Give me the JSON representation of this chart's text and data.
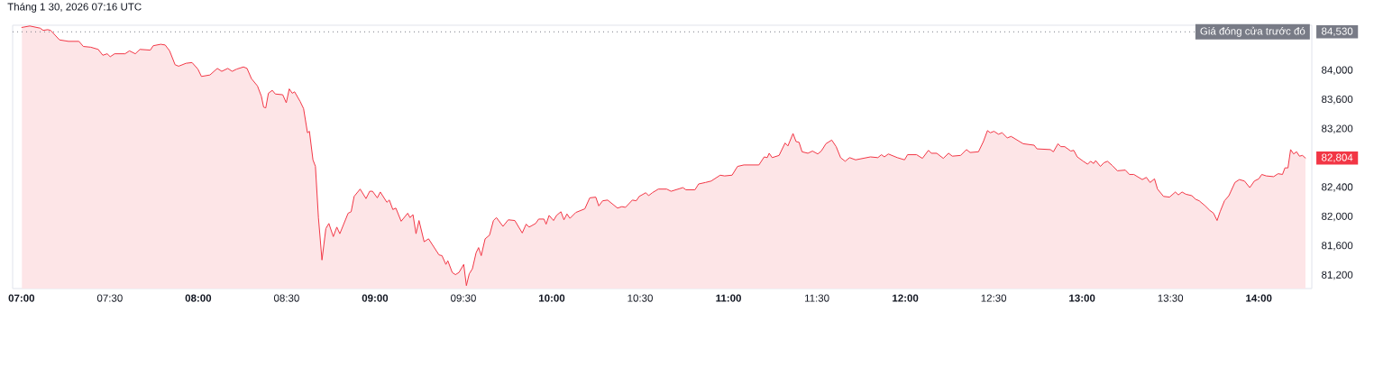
{
  "chart_data": {
    "type": "area",
    "title": "Tháng 1 30, 2026 07:16 UTC",
    "color": "#f23645",
    "x": [
      7.002,
      7.047,
      7.106,
      7.123,
      7.148,
      7.165,
      7.215,
      7.266,
      7.325,
      7.35,
      7.392,
      7.434,
      7.46,
      7.485,
      7.502,
      7.527,
      7.586,
      7.611,
      7.644,
      7.67,
      7.729,
      7.745,
      7.788,
      7.813,
      7.838,
      7.869,
      7.889,
      7.931,
      7.965,
      7.998,
      8.018,
      8.066,
      8.108,
      8.133,
      8.167,
      8.192,
      8.217,
      8.256,
      8.276,
      8.301,
      8.335,
      8.357,
      8.37,
      8.382,
      8.397,
      8.419,
      8.436,
      8.478,
      8.498,
      8.515,
      8.532,
      8.545,
      8.576,
      8.596,
      8.618,
      8.629,
      8.649,
      8.663,
      8.68,
      8.7,
      8.722,
      8.739,
      8.764,
      8.784,
      8.801,
      8.848,
      8.865,
      8.882,
      8.916,
      8.949,
      8.97,
      8.986,
      9.013,
      9.03,
      9.067,
      9.081,
      9.101,
      9.118,
      9.148,
      9.185,
      9.198,
      9.215,
      9.232,
      9.249,
      9.278,
      9.303,
      9.362,
      9.379,
      9.401,
      9.412,
      9.437,
      9.455,
      9.475,
      9.502,
      9.517,
      9.533,
      9.551,
      9.572,
      9.586,
      9.601,
      9.623,
      9.648,
      9.67,
      9.687,
      9.724,
      9.754,
      9.791,
      9.833,
      9.855,
      9.872,
      9.909,
      9.926,
      9.956,
      9.968,
      9.985,
      10.01,
      10.027,
      10.052,
      10.069,
      10.086,
      10.103,
      10.136,
      10.187,
      10.215,
      10.249,
      10.266,
      10.288,
      10.316,
      10.372,
      10.397,
      10.417,
      10.456,
      10.478,
      10.495,
      10.532,
      10.548,
      10.569,
      10.603,
      10.65,
      10.675,
      10.742,
      10.759,
      10.81,
      10.831,
      10.869,
      10.902,
      10.953,
      10.978,
      11.02,
      11.051,
      11.087,
      11.172,
      11.202,
      11.219,
      11.23,
      11.247,
      11.286,
      11.32,
      11.336,
      11.365,
      11.382,
      11.399,
      11.416,
      11.449,
      11.475,
      11.505,
      11.525,
      11.551,
      11.584,
      11.609,
      11.634,
      11.66,
      11.685,
      11.719,
      11.803,
      11.845,
      11.865,
      11.882,
      11.904,
      11.955,
      11.996,
      12.013,
      12.064,
      12.097,
      12.131,
      12.148,
      12.178,
      12.215,
      12.245,
      12.266,
      12.313,
      12.346,
      12.367,
      12.414,
      12.442,
      12.465,
      12.481,
      12.502,
      12.527,
      12.548,
      12.577,
      12.599,
      12.667,
      12.729,
      12.745,
      12.821,
      12.838,
      12.864,
      12.88,
      12.902,
      12.936,
      12.953,
      12.973,
      13.007,
      13.032,
      13.048,
      13.066,
      13.077,
      13.104,
      13.124,
      13.144,
      13.172,
      13.2,
      13.245,
      13.268,
      13.293,
      13.341,
      13.364,
      13.385,
      13.41,
      13.427,
      13.461,
      13.495,
      13.528,
      13.545,
      13.566,
      13.587,
      13.621,
      13.643,
      13.663,
      13.697,
      13.722,
      13.744,
      13.764,
      13.781,
      13.806,
      13.831,
      13.865,
      13.89,
      13.919,
      13.949,
      13.975,
      14.0,
      14.017,
      14.042,
      14.084,
      14.109,
      14.134,
      14.148,
      14.165,
      14.18,
      14.197,
      14.214,
      14.23,
      14.247,
      14.264
    ],
    "values": [
      84590,
      84610,
      84580,
      84550,
      84560,
      84550,
      84420,
      84400,
      84400,
      84330,
      84320,
      84290,
      84210,
      84230,
      84190,
      84230,
      84230,
      84270,
      84230,
      84290,
      84280,
      84340,
      84360,
      84350,
      84270,
      84080,
      84060,
      84100,
      84110,
      84020,
      83920,
      83940,
      84030,
      83990,
      84030,
      83990,
      84020,
      84050,
      84030,
      83890,
      83790,
      83650,
      83500,
      83490,
      83690,
      83730,
      83680,
      83670,
      83560,
      83750,
      83690,
      83710,
      83580,
      83480,
      83150,
      83170,
      82780,
      82690,
      81990,
      81410,
      81840,
      81910,
      81730,
      81860,
      81770,
      82050,
      82070,
      82280,
      82380,
      82250,
      82350,
      82350,
      82260,
      82340,
      82200,
      82230,
      82100,
      82120,
      81940,
      82050,
      81990,
      82030,
      81770,
      81950,
      81660,
      81700,
      81480,
      81470,
      81350,
      81400,
      81240,
      81210,
      81240,
      81350,
      81060,
      81220,
      81290,
      81510,
      81580,
      81470,
      81700,
      81750,
      81950,
      81990,
      81870,
      81960,
      81950,
      81780,
      81900,
      81860,
      81910,
      81970,
      81970,
      81900,
      82020,
      81950,
      82020,
      82070,
      81960,
      82040,
      81980,
      82060,
      82110,
      82260,
      82270,
      82150,
      82220,
      82230,
      82120,
      82140,
      82130,
      82230,
      82220,
      82280,
      82330,
      82290,
      82330,
      82380,
      82380,
      82350,
      82400,
      82370,
      82370,
      82450,
      82470,
      82490,
      82570,
      82560,
      82570,
      82690,
      82710,
      82710,
      82820,
      82810,
      82870,
      82810,
      82840,
      83010,
      82970,
      83140,
      83030,
      83020,
      82890,
      82870,
      82900,
      82860,
      82900,
      83000,
      83050,
      82960,
      82810,
      82760,
      82810,
      82780,
      82820,
      82810,
      82850,
      82820,
      82860,
      82810,
      82780,
      82850,
      82850,
      82800,
      82910,
      82870,
      82870,
      82800,
      82870,
      82830,
      82840,
      82920,
      82880,
      82890,
      83030,
      83180,
      83150,
      83170,
      83130,
      83150,
      83080,
      83100,
      83000,
      82980,
      82930,
      82920,
      82890,
      83000,
      82960,
      82960,
      82900,
      82910,
      82820,
      82760,
      82720,
      82760,
      82730,
      82770,
      82690,
      82740,
      82760,
      82700,
      82630,
      82640,
      82580,
      82580,
      82510,
      82540,
      82470,
      82520,
      82380,
      82280,
      82270,
      82340,
      82300,
      82340,
      82310,
      82290,
      82240,
      82220,
      82150,
      82090,
      82050,
      81950,
      82070,
      82220,
      82290,
      82470,
      82510,
      82490,
      82400,
      82490,
      82520,
      82580,
      82560,
      82550,
      82590,
      82580,
      82670,
      82670,
      82920,
      82860,
      82890,
      82830,
      82840,
      82804
    ],
    "xlim": [
      6.95,
      14.3
    ],
    "ylim": [
      81020,
      84620
    ],
    "xticks": [
      {
        "value": 7,
        "label": "07:00"
      },
      {
        "value": 7.5,
        "label": "07:30"
      },
      {
        "value": 8,
        "label": "08:00"
      },
      {
        "value": 8.5,
        "label": "08:30"
      },
      {
        "value": 9,
        "label": "09:00"
      },
      {
        "value": 9.5,
        "label": "09:30"
      },
      {
        "value": 10,
        "label": "10:00"
      },
      {
        "value": 10.5,
        "label": "10:30"
      },
      {
        "value": 11,
        "label": "11:00"
      },
      {
        "value": 11.5,
        "label": "11:30"
      },
      {
        "value": 12,
        "label": "12:00"
      },
      {
        "value": 12.5,
        "label": "12:30"
      },
      {
        "value": 13,
        "label": "13:00"
      },
      {
        "value": 13.5,
        "label": "13:30"
      },
      {
        "value": 14,
        "label": "14:00"
      }
    ],
    "yticks": [
      {
        "value": 81200,
        "label": "81,200"
      },
      {
        "value": 81600,
        "label": "81,600"
      },
      {
        "value": 82000,
        "label": "82,000"
      },
      {
        "value": 82400,
        "label": "82,400"
      },
      {
        "value": 82804,
        "label": "82,804"
      },
      {
        "value": 83200,
        "label": "83,200"
      },
      {
        "value": 83600,
        "label": "83,600"
      },
      {
        "value": 84000,
        "label": "84,000"
      },
      {
        "value": 84530,
        "label": "84,530"
      }
    ],
    "ref_lines": [
      {
        "axis": "y",
        "value": 84530,
        "label": "Giá đóng cửa trước đó",
        "color": "#787b86",
        "line_style": "dotted"
      }
    ]
  }
}
